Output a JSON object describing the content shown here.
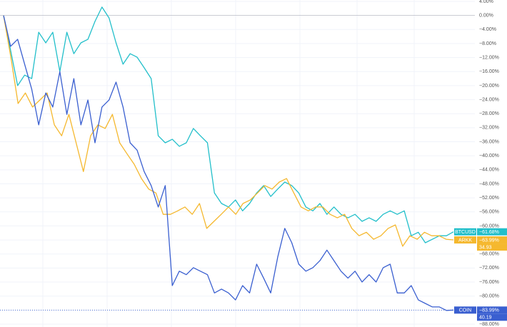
{
  "chart_data": {
    "type": "line",
    "ylim": [
      -88,
      4
    ],
    "yticks": [
      {
        "value": 4,
        "label": "4.00%"
      },
      {
        "value": 0,
        "label": "0.00%"
      },
      {
        "value": -4,
        "label": "−4.00%"
      },
      {
        "value": -8,
        "label": "−8.00%"
      },
      {
        "value": -12,
        "label": "−12.00%"
      },
      {
        "value": -16,
        "label": "−16.00%"
      },
      {
        "value": -20,
        "label": "−20.00%"
      },
      {
        "value": -24,
        "label": "−24.00%"
      },
      {
        "value": -28,
        "label": "−28.00%"
      },
      {
        "value": -32,
        "label": "−32.00%"
      },
      {
        "value": -36,
        "label": "−36.00%"
      },
      {
        "value": -40,
        "label": "−40.00%"
      },
      {
        "value": -44,
        "label": "−44.00%"
      },
      {
        "value": -48,
        "label": "−48.00%"
      },
      {
        "value": -52,
        "label": "−52.00%"
      },
      {
        "value": -56,
        "label": "−56.00%"
      },
      {
        "value": -60,
        "label": "−60.00%"
      },
      {
        "value": -64,
        "label": "−64.00%"
      },
      {
        "value": -68,
        "label": "−68.00%"
      },
      {
        "value": -72,
        "label": "−72.00%"
      },
      {
        "value": -76,
        "label": "−76.00%"
      },
      {
        "value": -80,
        "label": "−80.00%"
      },
      {
        "value": -84,
        "label": "−84.00%"
      },
      {
        "value": -88,
        "label": "−88.00%"
      }
    ],
    "grid": true,
    "series": [
      {
        "name": "BTCUSD",
        "color": "#22bfca",
        "last_value_label": "−61.68%",
        "values": [
          0,
          -9.9,
          -20.0,
          -17.0,
          -18.0,
          -4.8,
          -7.8,
          -4.8,
          -16.0,
          -4.8,
          -10.9,
          -7.8,
          -6.8,
          -1.7,
          2.4,
          -0.7,
          -7.8,
          -13.9,
          -10.9,
          -11.9,
          -14.9,
          -18.0,
          -34.3,
          -36.3,
          -35.3,
          -37.3,
          -36.3,
          -32.2,
          -34.3,
          -36.3,
          -50.6,
          -53.6,
          -54.6,
          -52.6,
          -55.7,
          -53.6,
          -50.6,
          -48.5,
          -51.6,
          -49.5,
          -47.5,
          -48.5,
          -50.6,
          -54.6,
          -55.7,
          -53.6,
          -56.7,
          -54.6,
          -56.7,
          -57.7,
          -56.7,
          -58.7,
          -57.7,
          -58.7,
          -56.7,
          -55.7,
          -56.7,
          -55.7,
          -62.8,
          -61.8,
          -64.8,
          -63.8,
          -62.8,
          -62.8,
          -61.68
        ]
      },
      {
        "name": "ARKK",
        "color": "#f5b82e",
        "last_value_label": "−63.99%",
        "price_label": "34.93",
        "values": [
          0,
          -11.9,
          -25.1,
          -22.1,
          -26.1,
          -24.1,
          -22.1,
          -31.2,
          -34.3,
          -28.2,
          -36.3,
          -44.5,
          -34.3,
          -31.2,
          -32.2,
          -28.2,
          -36.3,
          -39.4,
          -42.4,
          -46.5,
          -49.5,
          -50.6,
          -56.7,
          -56.7,
          -55.7,
          -54.6,
          -56.7,
          -53.6,
          -60.7,
          -58.7,
          -56.7,
          -54.6,
          -56.7,
          -53.6,
          -52.6,
          -50.6,
          -48.5,
          -49.5,
          -47.5,
          -46.5,
          -50.6,
          -54.6,
          -55.7,
          -54.6,
          -54.6,
          -56.7,
          -57.7,
          -56.7,
          -60.7,
          -62.8,
          -61.8,
          -63.8,
          -62.8,
          -60.7,
          -59.7,
          -65.8,
          -62.8,
          -63.8,
          -61.8,
          -62.8,
          -62.8,
          -63.8,
          -63.99
        ]
      },
      {
        "name": "COIN",
        "color": "#3a5fd0",
        "last_value_label": "−83.99%",
        "price_label": "40.19",
        "values": [
          0,
          -8.8,
          -6.8,
          -13.9,
          -21.0,
          -31.2,
          -22.1,
          -26.1,
          -16.0,
          -28.2,
          -18.0,
          -31.2,
          -24.1,
          -36.3,
          -26.1,
          -24.1,
          -19.0,
          -26.1,
          -36.3,
          -38.4,
          -44.5,
          -48.5,
          -54.6,
          -48.5,
          -77.0,
          -72.9,
          -73.9,
          -71.9,
          -72.9,
          -73.9,
          -79.1,
          -78.0,
          -79.1,
          -81.1,
          -77.0,
          -79.1,
          -70.9,
          -74.9,
          -79.1,
          -68.9,
          -60.7,
          -64.8,
          -70.9,
          -72.9,
          -71.9,
          -69.9,
          -66.9,
          -69.9,
          -72.9,
          -74.9,
          -72.9,
          -76.0,
          -73.9,
          -76.0,
          -71.9,
          -70.9,
          -79.1,
          -79.1,
          -77.0,
          -81.1,
          -82.1,
          -83.1,
          -83.1,
          -84.1,
          -83.99
        ]
      }
    ]
  }
}
